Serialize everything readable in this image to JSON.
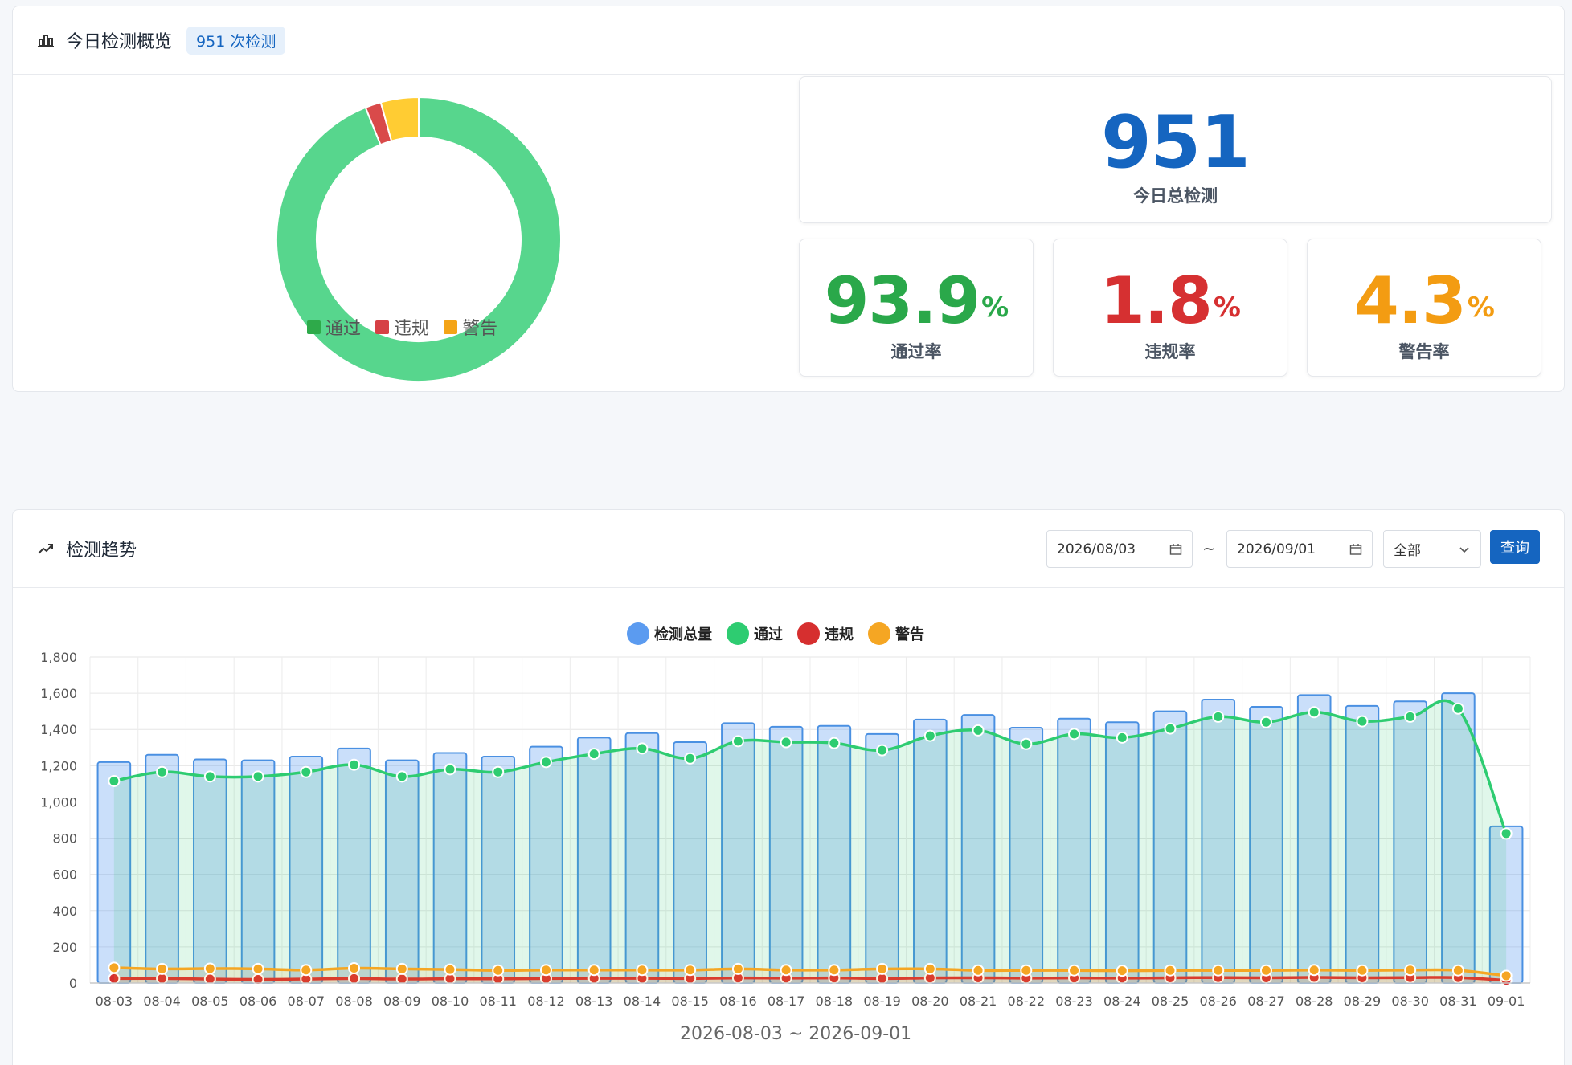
{
  "overview": {
    "title": "今日检测概览",
    "badge": "951 次检测",
    "total": "951",
    "total_label": "今日总检测",
    "pass_rate": "93.9",
    "pass_label": "通过率",
    "violation_rate": "1.8",
    "violation_label": "违规率",
    "warning_rate": "4.3",
    "warning_label": "警告率",
    "percent_sign": "%",
    "pie": {
      "legend": [
        "通过",
        "违规",
        "警告"
      ],
      "values": [
        93.9,
        1.8,
        4.3
      ],
      "colors": [
        "#57d68d",
        "#d94a4a",
        "#ffcc33"
      ],
      "legend_colors": [
        "#2eaa4a",
        "#d64045",
        "#f4a417"
      ]
    },
    "colors": {
      "total": "#1565c0",
      "pass": "#2aa84a",
      "violation": "#d63031",
      "warning": "#f39c12"
    }
  },
  "trend": {
    "title": "检测趋势",
    "start_date": "2026/08/03",
    "end_date": "2026/09/01",
    "tilde": "~",
    "filter_value": "全部",
    "query_label": "查询",
    "range_text": "2026-08-03 ~ 2026-09-01"
  },
  "chart_data": {
    "type": "bar",
    "categories": [
      "08-03",
      "08-04",
      "08-05",
      "08-06",
      "08-07",
      "08-08",
      "08-09",
      "08-10",
      "08-11",
      "08-12",
      "08-13",
      "08-14",
      "08-15",
      "08-16",
      "08-17",
      "08-18",
      "08-19",
      "08-20",
      "08-21",
      "08-22",
      "08-23",
      "08-24",
      "08-25",
      "08-26",
      "08-27",
      "08-28",
      "08-29",
      "08-30",
      "08-31",
      "09-01"
    ],
    "series": [
      {
        "name": "检测总量",
        "kind": "bar",
        "color": "#5b9bf0",
        "values": [
          1220,
          1260,
          1235,
          1230,
          1250,
          1295,
          1230,
          1270,
          1250,
          1305,
          1355,
          1380,
          1330,
          1435,
          1415,
          1420,
          1375,
          1455,
          1480,
          1410,
          1460,
          1440,
          1500,
          1565,
          1525,
          1590,
          1530,
          1555,
          1600,
          865
        ]
      },
      {
        "name": "通过",
        "kind": "line",
        "color": "#2ecc71",
        "values": [
          1115,
          1165,
          1140,
          1140,
          1165,
          1205,
          1140,
          1180,
          1165,
          1220,
          1265,
          1295,
          1240,
          1335,
          1330,
          1325,
          1285,
          1365,
          1395,
          1320,
          1375,
          1355,
          1405,
          1470,
          1440,
          1495,
          1445,
          1470,
          1515,
          825
        ]
      },
      {
        "name": "违规",
        "kind": "line",
        "color": "#d62f2f",
        "values": [
          25,
          25,
          22,
          20,
          22,
          25,
          22,
          24,
          23,
          25,
          26,
          26,
          25,
          28,
          27,
          28,
          25,
          28,
          29,
          27,
          28,
          27,
          29,
          30,
          29,
          31,
          29,
          30,
          30,
          15
        ]
      },
      {
        "name": "警告",
        "kind": "line",
        "color": "#f5a623",
        "values": [
          85,
          78,
          80,
          78,
          72,
          82,
          78,
          75,
          70,
          72,
          72,
          72,
          72,
          78,
          72,
          72,
          78,
          78,
          70,
          70,
          70,
          68,
          70,
          70,
          70,
          72,
          70,
          72,
          70,
          40
        ]
      }
    ],
    "ylim": [
      0,
      1800
    ],
    "yticks": [
      "0",
      "200",
      "400",
      "600",
      "800",
      "1,000",
      "1,200",
      "1,400",
      "1,600",
      "1,800"
    ],
    "legend_position": "top-center",
    "grid": true
  }
}
